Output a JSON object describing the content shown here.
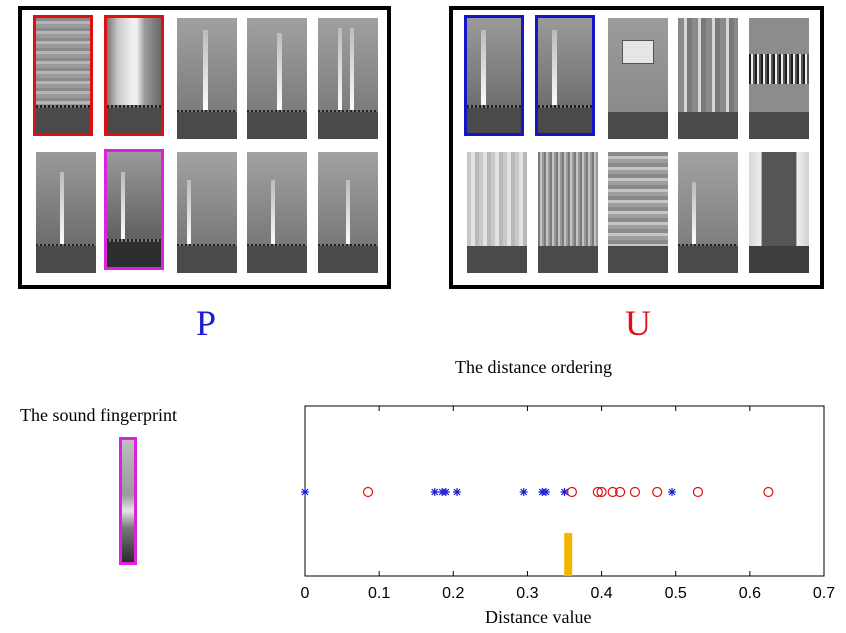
{
  "groups": {
    "p": {
      "label": "P",
      "color": "#1a1ad6"
    },
    "u": {
      "label": "U",
      "color": "#e01010"
    }
  },
  "fingerprint_title": "The sound fingerprint",
  "colors": {
    "red_box": "#e01010",
    "blue_box": "#1414c8",
    "magenta_box": "#e020e0",
    "threshold": "#f5b400"
  },
  "chart_data": {
    "type": "scatter",
    "title": "The distance ordering",
    "xlabel": "Distance value",
    "ylabel": "",
    "xlim": [
      0,
      0.7
    ],
    "xticks": [
      "0",
      "0.1",
      "0.2",
      "0.3",
      "0.4",
      "0.5",
      "0.6",
      "0.7"
    ],
    "grid": false,
    "series": [
      {
        "marker": "star",
        "color": "#1a1ad6",
        "values": [
          0.0,
          0.175,
          0.185,
          0.19,
          0.205,
          0.295,
          0.32,
          0.325,
          0.35,
          0.495
        ]
      },
      {
        "marker": "circle",
        "color": "#e01010",
        "values": [
          0.085,
          0.36,
          0.395,
          0.4,
          0.415,
          0.425,
          0.445,
          0.475,
          0.53,
          0.625
        ]
      }
    ],
    "threshold": 0.355
  }
}
